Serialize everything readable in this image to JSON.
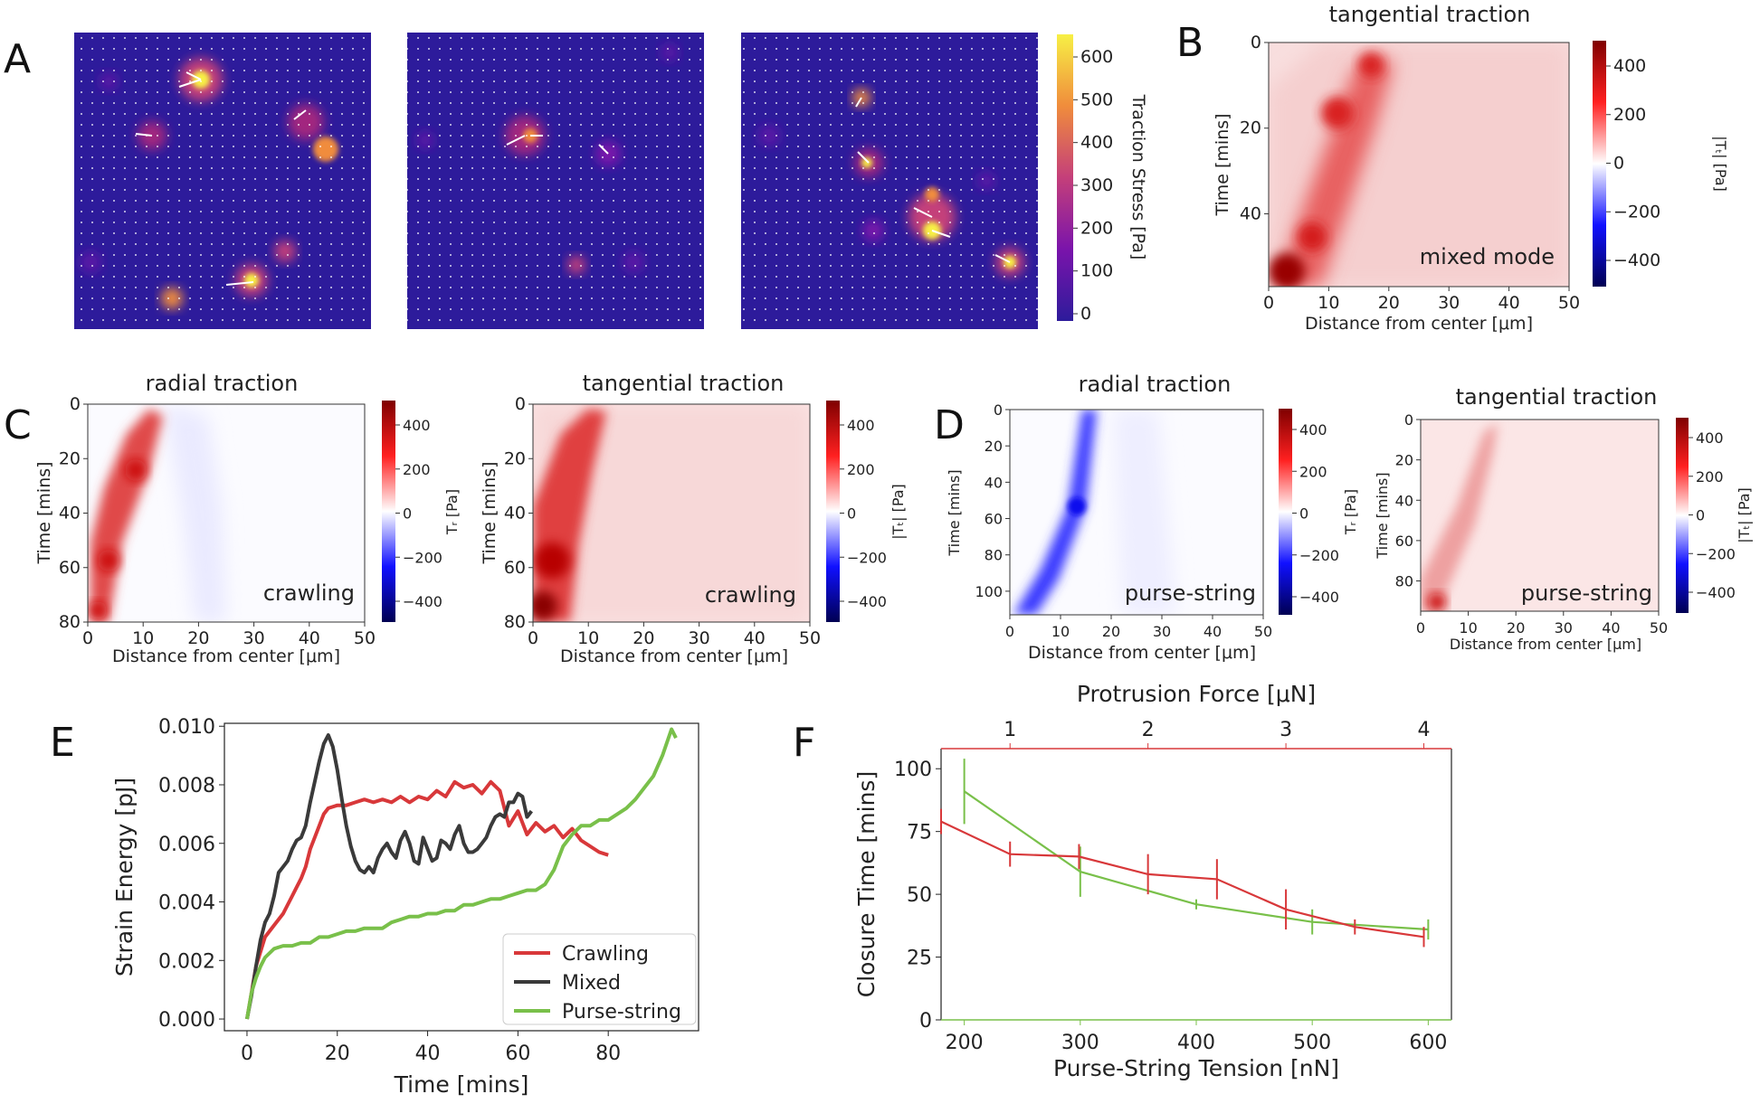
{
  "panels": {
    "A": {
      "letter": "A",
      "colorbar_label": "Traction Stress [Pa]",
      "colorbar_ticks": [
        "0",
        "100",
        "200",
        "300",
        "400",
        "500",
        "600"
      ]
    },
    "B": {
      "letter": "B",
      "title": "tangential traction",
      "mode": "mixed mode",
      "xlabel": "Distance from center [μm]",
      "ylabel": "Time [mins]",
      "xticks": [
        "0",
        "10",
        "20",
        "30",
        "40",
        "50"
      ],
      "yticks": [
        "0",
        "20",
        "40"
      ],
      "cbar_label": "|Tₜ| [Pa]",
      "cbar_ticks": [
        "400",
        "200",
        "0",
        "−200",
        "−400"
      ]
    },
    "C": {
      "letter": "C",
      "radial": {
        "title": "radial traction",
        "mode": "crawling",
        "xlabel": "Distance from center [μm]",
        "ylabel": "Time [mins]",
        "xticks": [
          "0",
          "10",
          "20",
          "30",
          "40",
          "50"
        ],
        "yticks": [
          "0",
          "20",
          "40",
          "60",
          "80"
        ],
        "cbar_label": "Tᵣ [Pa]",
        "cbar_ticks": [
          "400",
          "200",
          "0",
          "−200",
          "−400"
        ]
      },
      "tangential": {
        "title": "tangential traction",
        "mode": "crawling",
        "xlabel": "Distance from center [μm]",
        "ylabel": "Time [mins]",
        "xticks": [
          "0",
          "10",
          "20",
          "30",
          "40",
          "50"
        ],
        "yticks": [
          "0",
          "20",
          "40",
          "60",
          "80"
        ],
        "cbar_label": "|Tₜ| [Pa]",
        "cbar_ticks": [
          "400",
          "200",
          "0",
          "−200",
          "−400"
        ]
      }
    },
    "D": {
      "letter": "D",
      "radial": {
        "title": "radial traction",
        "mode": "purse-string",
        "xlabel": "Distance from center [μm]",
        "ylabel": "Time [mins]",
        "xticks": [
          "0",
          "10",
          "20",
          "30",
          "40",
          "50"
        ],
        "yticks": [
          "0",
          "20",
          "40",
          "60",
          "80",
          "100"
        ],
        "cbar_label": "Tᵣ [Pa]",
        "cbar_ticks": [
          "400",
          "200",
          "0",
          "−200",
          "−400"
        ]
      },
      "tangential": {
        "title": "tangential traction",
        "mode": "purse-string",
        "xlabel": "Distance from center [μm]",
        "ylabel": "Time [mins]",
        "xticks": [
          "0",
          "10",
          "20",
          "30",
          "40",
          "50"
        ],
        "yticks": [
          "0",
          "20",
          "40",
          "60",
          "80"
        ],
        "cbar_label": "|Tₜ| [Pa]",
        "cbar_ticks": [
          "400",
          "200",
          "0",
          "−200",
          "−400"
        ]
      }
    },
    "E": {
      "letter": "E"
    },
    "F": {
      "letter": "F"
    }
  },
  "chart_data": [
    {
      "id": "E",
      "type": "line",
      "title": "",
      "xlabel": "Time [mins]",
      "ylabel": "Strain Energy [pJ]",
      "xlim": [
        -5,
        100
      ],
      "ylim": [
        -0.0004,
        0.0101
      ],
      "xticks": [
        0,
        20,
        40,
        60,
        80
      ],
      "yticks": [
        0.0,
        0.002,
        0.004,
        0.006,
        0.008,
        0.01
      ],
      "ytick_labels": [
        "0.000",
        "0.002",
        "0.004",
        "0.006",
        "0.008",
        "0.010"
      ],
      "legend_position": "lower-right",
      "series": [
        {
          "name": "Crawling",
          "color": "#d8383a",
          "x": [
            0,
            2,
            4,
            6,
            8,
            10,
            11,
            12,
            13,
            14,
            15,
            16,
            17,
            18,
            20,
            22,
            24,
            26,
            28,
            30,
            32,
            34,
            36,
            38,
            40,
            42,
            44,
            46,
            48,
            50,
            52,
            54,
            56,
            58,
            60,
            62,
            64,
            66,
            68,
            70,
            72,
            74,
            76,
            78,
            80
          ],
          "y": [
            0,
            0.0018,
            0.0028,
            0.0032,
            0.0036,
            0.0042,
            0.0045,
            0.0048,
            0.0052,
            0.0058,
            0.0062,
            0.0066,
            0.007,
            0.0072,
            0.0073,
            0.0073,
            0.0074,
            0.0075,
            0.0074,
            0.0075,
            0.0074,
            0.0076,
            0.0074,
            0.0076,
            0.0075,
            0.0078,
            0.0076,
            0.0081,
            0.0079,
            0.008,
            0.0077,
            0.0081,
            0.0078,
            0.0066,
            0.0071,
            0.0063,
            0.0067,
            0.0064,
            0.0066,
            0.0062,
            0.0065,
            0.0061,
            0.0059,
            0.0057,
            0.0056
          ]
        },
        {
          "name": "Mixed",
          "color": "#3a3a3a",
          "x": [
            0,
            1,
            2,
            3,
            4,
            5,
            6,
            7,
            8,
            9,
            10,
            11,
            12,
            13,
            14,
            15,
            16,
            17,
            18,
            19,
            20,
            21,
            22,
            23,
            24,
            25,
            26,
            27,
            28,
            29,
            30,
            31,
            32,
            33,
            34,
            35,
            36,
            37,
            38,
            39,
            40,
            41,
            42,
            43,
            44,
            45,
            46,
            47,
            48,
            49,
            50,
            51,
            52,
            53,
            54,
            55,
            56,
            57,
            58,
            59,
            60,
            61,
            62,
            63
          ],
          "y": [
            0,
            0.0008,
            0.0018,
            0.0027,
            0.0033,
            0.0036,
            0.0042,
            0.005,
            0.0052,
            0.0054,
            0.0058,
            0.0061,
            0.0062,
            0.0066,
            0.0074,
            0.0081,
            0.0088,
            0.0094,
            0.0097,
            0.0093,
            0.0085,
            0.0075,
            0.0066,
            0.0059,
            0.0054,
            0.0051,
            0.005,
            0.0052,
            0.005,
            0.0055,
            0.0058,
            0.006,
            0.0057,
            0.0055,
            0.0061,
            0.0064,
            0.006,
            0.0054,
            0.0053,
            0.0062,
            0.0058,
            0.0054,
            0.0055,
            0.0061,
            0.006,
            0.0058,
            0.0063,
            0.0066,
            0.006,
            0.0057,
            0.0057,
            0.0058,
            0.006,
            0.0062,
            0.0066,
            0.0069,
            0.007,
            0.0069,
            0.0074,
            0.0074,
            0.0077,
            0.0076,
            0.0069,
            0.0071
          ]
        },
        {
          "name": "Purse-string",
          "color": "#79c04a",
          "x": [
            0,
            1,
            2,
            3,
            4,
            6,
            8,
            10,
            12,
            14,
            16,
            18,
            20,
            22,
            24,
            26,
            28,
            30,
            32,
            34,
            36,
            38,
            40,
            42,
            44,
            46,
            48,
            50,
            52,
            54,
            56,
            58,
            60,
            62,
            64,
            66,
            68,
            70,
            72,
            74,
            76,
            78,
            80,
            82,
            84,
            86,
            88,
            90,
            92,
            94,
            95
          ],
          "y": [
            0,
            0.0009,
            0.0014,
            0.0018,
            0.0021,
            0.0024,
            0.0025,
            0.0025,
            0.0026,
            0.0026,
            0.0028,
            0.0028,
            0.0029,
            0.003,
            0.003,
            0.0031,
            0.0031,
            0.0031,
            0.0033,
            0.0034,
            0.0035,
            0.0035,
            0.0036,
            0.0036,
            0.0037,
            0.0037,
            0.0039,
            0.0039,
            0.004,
            0.0041,
            0.0041,
            0.0042,
            0.0043,
            0.0044,
            0.0044,
            0.0046,
            0.0051,
            0.0059,
            0.0063,
            0.0066,
            0.0066,
            0.0068,
            0.0068,
            0.007,
            0.0072,
            0.0075,
            0.0079,
            0.0083,
            0.009,
            0.0099,
            0.0096
          ]
        }
      ]
    },
    {
      "id": "F",
      "type": "line",
      "title": "",
      "xlabel": "Purse-String Tension [nN]",
      "x2label": "Protrusion Force [μN]",
      "ylabel": "Closure Time [mins]",
      "xlim": [
        180,
        620
      ],
      "x2lim": [
        0.5,
        4.2
      ],
      "ylim": [
        0,
        108
      ],
      "xticks": [
        200,
        300,
        400,
        500,
        600
      ],
      "x2ticks": [
        1,
        2,
        3,
        4
      ],
      "yticks": [
        0,
        25,
        50,
        75,
        100
      ],
      "series": [
        {
          "name": "Purse-String Tension",
          "color": "#79c04a",
          "axis": "bottom",
          "x": [
            200,
            300,
            400,
            500,
            600
          ],
          "y": [
            91,
            59,
            46,
            39,
            36
          ],
          "err": [
            13,
            10,
            2,
            5,
            4
          ]
        },
        {
          "name": "Protrusion Force",
          "color": "#d8383a",
          "axis": "top",
          "x": [
            0.5,
            1.0,
            1.5,
            2.0,
            2.5,
            3.0,
            3.5,
            4.0
          ],
          "y": [
            79,
            66,
            65,
            58,
            56,
            44,
            37,
            33
          ],
          "err": [
            5,
            5,
            5,
            8,
            8,
            8,
            3,
            4
          ]
        }
      ]
    }
  ]
}
